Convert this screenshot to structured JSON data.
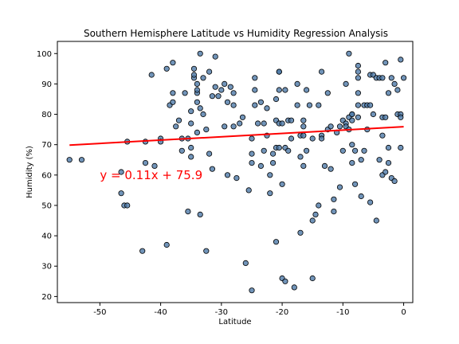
{
  "chart_data": {
    "type": "scatter",
    "title": "Southern Hemisphere Latitude vs Humidity Regression Analysis",
    "xlabel": "Latitude",
    "ylabel": "Humidity (%)",
    "xlim": [
      -57,
      1.5
    ],
    "ylim": [
      18,
      104
    ],
    "xticks": [
      -50,
      -40,
      -30,
      -20,
      -10,
      0
    ],
    "yticks": [
      20,
      30,
      40,
      50,
      60,
      70,
      80,
      90,
      100
    ],
    "grid": false,
    "colors": {
      "point_fill": "#4e79a7",
      "point_edge": "#000000",
      "regression": "#ff0000",
      "annotation": "#ff0000"
    },
    "regression": {
      "slope": 0.11,
      "intercept": 75.9,
      "x_start": -55,
      "x_end": 0
    },
    "annotation": {
      "text": "y = 0.11x + 75.9",
      "x": -50,
      "y": 60
    },
    "points": [
      [
        -55,
        65
      ],
      [
        -53,
        65
      ],
      [
        -46.5,
        61
      ],
      [
        -46.5,
        54
      ],
      [
        -46,
        50
      ],
      [
        -45.5,
        50
      ],
      [
        -45.5,
        71
      ],
      [
        -43,
        35
      ],
      [
        -42.5,
        64
      ],
      [
        -42.5,
        71
      ],
      [
        -41.5,
        93
      ],
      [
        -41,
        63
      ],
      [
        -40,
        72
      ],
      [
        -40,
        71
      ],
      [
        -39,
        95
      ],
      [
        -39,
        37
      ],
      [
        -38.5,
        83
      ],
      [
        -38,
        84
      ],
      [
        -38,
        87
      ],
      [
        -38,
        97
      ],
      [
        -37.5,
        76
      ],
      [
        -37,
        78
      ],
      [
        -36.5,
        68
      ],
      [
        -36.5,
        72
      ],
      [
        -36,
        87
      ],
      [
        -35.5,
        72
      ],
      [
        -35.5,
        48
      ],
      [
        -35,
        66
      ],
      [
        -35,
        69
      ],
      [
        -35,
        77
      ],
      [
        -35,
        81
      ],
      [
        -34.5,
        92
      ],
      [
        -34.5,
        93
      ],
      [
        -34.5,
        95
      ],
      [
        -34,
        87
      ],
      [
        -34,
        88
      ],
      [
        -34,
        90
      ],
      [
        -34,
        84
      ],
      [
        -34,
        74
      ],
      [
        -33.5,
        100
      ],
      [
        -33.5,
        82
      ],
      [
        -33.5,
        47
      ],
      [
        -33,
        92
      ],
      [
        -33,
        80
      ],
      [
        -32.5,
        75
      ],
      [
        -32.5,
        35
      ],
      [
        -32,
        94
      ],
      [
        -32,
        67
      ],
      [
        -31.5,
        86
      ],
      [
        -31.5,
        62
      ],
      [
        -31,
        99
      ],
      [
        -31,
        89
      ],
      [
        -30.5,
        86
      ],
      [
        -30,
        88
      ],
      [
        -29.5,
        90
      ],
      [
        -29.5,
        76
      ],
      [
        -29,
        84
      ],
      [
        -29,
        60
      ],
      [
        -28.5,
        89
      ],
      [
        -28,
        87
      ],
      [
        -28,
        83
      ],
      [
        -28,
        76
      ],
      [
        -27.5,
        59
      ],
      [
        -27,
        77
      ],
      [
        -26.5,
        79
      ],
      [
        -26,
        31
      ],
      [
        -25.5,
        55
      ],
      [
        -25,
        67
      ],
      [
        -25,
        64
      ],
      [
        -25,
        72
      ],
      [
        -25,
        22
      ],
      [
        -24.5,
        88
      ],
      [
        -24.5,
        92
      ],
      [
        -24.5,
        83
      ],
      [
        -24,
        77
      ],
      [
        -23.5,
        84
      ],
      [
        -23.5,
        63
      ],
      [
        -23,
        77
      ],
      [
        -23,
        68
      ],
      [
        -22.5,
        82
      ],
      [
        -22.5,
        73
      ],
      [
        -22,
        60
      ],
      [
        -22,
        54
      ],
      [
        -21.5,
        67
      ],
      [
        -21.5,
        64
      ],
      [
        -21,
        85
      ],
      [
        -21,
        78
      ],
      [
        -21,
        69
      ],
      [
        -21,
        38
      ],
      [
        -20.5,
        94
      ],
      [
        -20.5,
        94
      ],
      [
        -20.5,
        88
      ],
      [
        -20.5,
        77
      ],
      [
        -20.5,
        69
      ],
      [
        -20,
        77
      ],
      [
        -20,
        26
      ],
      [
        -20,
        57
      ],
      [
        -19.5,
        88
      ],
      [
        -19.5,
        69
      ],
      [
        -19.5,
        25
      ],
      [
        -19,
        68
      ],
      [
        -19,
        78
      ],
      [
        -18.5,
        78
      ],
      [
        -18.5,
        72
      ],
      [
        -18,
        23
      ],
      [
        -17.5,
        90
      ],
      [
        -17.5,
        83
      ],
      [
        -17,
        73
      ],
      [
        -17,
        66
      ],
      [
        -17,
        41
      ],
      [
        -16.5,
        78
      ],
      [
        -16.5,
        76
      ],
      [
        -16.5,
        63
      ],
      [
        -16.5,
        73
      ],
      [
        -16,
        88
      ],
      [
        -16,
        68
      ],
      [
        -15.5,
        83
      ],
      [
        -15,
        72
      ],
      [
        -15,
        45
      ],
      [
        -15,
        26
      ],
      [
        -14.5,
        47
      ],
      [
        -14,
        83
      ],
      [
        -14,
        50
      ],
      [
        -13.5,
        94
      ],
      [
        -13.5,
        73
      ],
      [
        -13.5,
        72
      ],
      [
        -13,
        63
      ],
      [
        -12.5,
        87
      ],
      [
        -12.5,
        75
      ],
      [
        -12,
        62
      ],
      [
        -12,
        76
      ],
      [
        -11.5,
        52
      ],
      [
        -11.5,
        48
      ],
      [
        -11,
        74
      ],
      [
        -10.5,
        76
      ],
      [
        -10.5,
        56
      ],
      [
        -10,
        68
      ],
      [
        -10,
        78
      ],
      [
        -9.5,
        90
      ],
      [
        -9.5,
        77
      ],
      [
        -9.5,
        76
      ],
      [
        -9,
        79
      ],
      [
        -9,
        75
      ],
      [
        -9,
        100
      ],
      [
        -8.5,
        80
      ],
      [
        -8.5,
        80
      ],
      [
        -8.5,
        78
      ],
      [
        -8.5,
        64
      ],
      [
        -8.5,
        70
      ],
      [
        -8,
        68
      ],
      [
        -8,
        57
      ],
      [
        -7.5,
        87
      ],
      [
        -7.5,
        96
      ],
      [
        -7.5,
        94
      ],
      [
        -7.5,
        92
      ],
      [
        -7.5,
        83
      ],
      [
        -7.5,
        79
      ],
      [
        -7,
        53
      ],
      [
        -7,
        65
      ],
      [
        -6.5,
        83
      ],
      [
        -6.5,
        68
      ],
      [
        -6,
        83
      ],
      [
        -6,
        75
      ],
      [
        -5.5,
        93
      ],
      [
        -5.5,
        83
      ],
      [
        -5.5,
        51
      ],
      [
        -5,
        93
      ],
      [
        -5,
        80
      ],
      [
        -4.5,
        92
      ],
      [
        -4.5,
        45
      ],
      [
        -4,
        92
      ],
      [
        -4,
        65
      ],
      [
        -3.5,
        92
      ],
      [
        -3.5,
        79
      ],
      [
        -3.5,
        73
      ],
      [
        -3.5,
        60
      ],
      [
        -3,
        97
      ],
      [
        -3,
        61
      ],
      [
        -3,
        79
      ],
      [
        -2.5,
        87
      ],
      [
        -2.5,
        64
      ],
      [
        -2.5,
        69
      ],
      [
        -2,
        92
      ],
      [
        -2,
        59
      ],
      [
        -1.5,
        90
      ],
      [
        -1.5,
        58
      ],
      [
        -1,
        88
      ],
      [
        -1,
        80
      ],
      [
        -0.5,
        98
      ],
      [
        -0.5,
        80
      ],
      [
        -0.5,
        79
      ],
      [
        -0.5,
        69
      ],
      [
        0,
        92
      ]
    ]
  }
}
